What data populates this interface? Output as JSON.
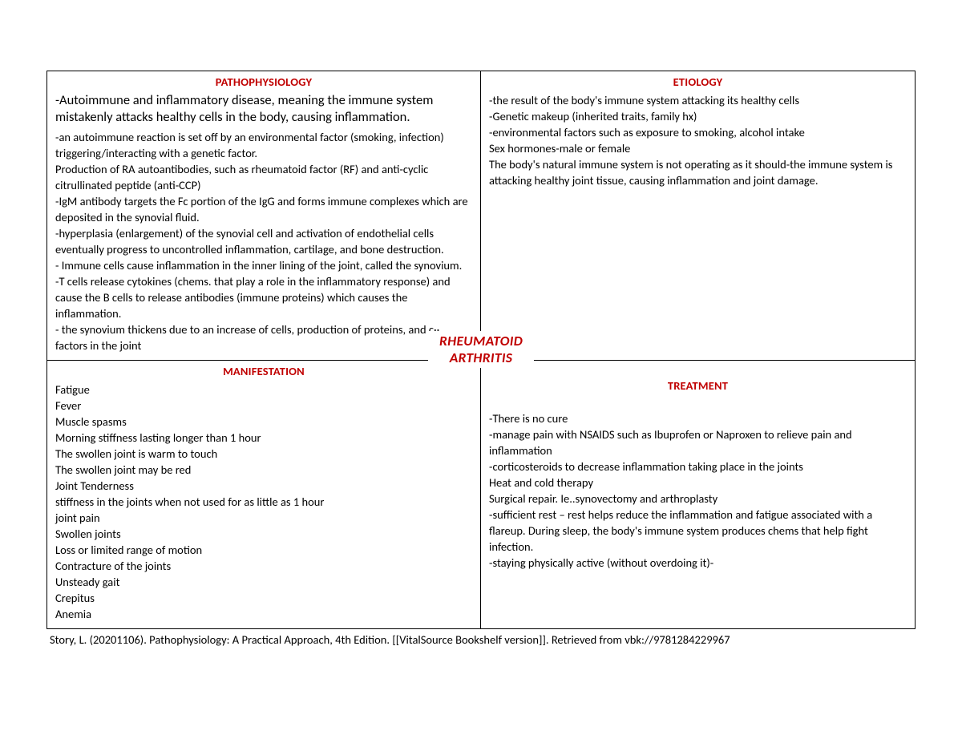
{
  "center": {
    "line1": "RHEUMATOID",
    "line2": "ARTHRITIS"
  },
  "colors": {
    "accent": "#c00000",
    "text": "#000000",
    "border": "#000000",
    "background": "#ffffff"
  },
  "quadrants": {
    "pathophysiology": {
      "heading": "PATHOPHYSIOLOGY",
      "lead": "-Autoimmune and inflammatory disease, meaning the immune system mistakenly attacks healthy cells in the body, causing inflammation.",
      "lines": [
        "-an autoimmune reaction is set off by an environmental factor (smoking, infection) triggering/interacting with a genetic factor.",
        "Production of RA autoantibodies, such as rheumatoid factor (RF) and anti-cyclic citrullinated peptide (anti-CCP)",
        "-IgM antibody targets the Fc portion of the IgG and forms immune complexes which are deposited in the synovial fluid.",
        "-hyperplasia (enlargement) of the synovial cell and activation of endothelial cells eventually progress to uncontrolled inflammation, cartilage, and bone destruction.",
        "- Immune cells cause inflammation in the inner lining of the joint, called the synovium.",
        "-T cells release cytokines (chems. that play a role in the inflammatory response) and cause the B cells to release antibodies (immune proteins) which causes the inflammation.",
        "- the synovium thickens due to an increase of cells, production of proteins, and c·· factors in the joint"
      ]
    },
    "etiology": {
      "heading": "ETIOLOGY",
      "lines": [
        "-the result of the body's immune system attacking its healthy cells",
        "-Genetic makeup (inherited traits, family hx)",
        "-environmental factors such as exposure to smoking, alcohol intake",
        "Sex hormones-male or female",
        "The body's natural immune system is not operating as it should-the immune system is attacking healthy joint tissue, causing inflammation and joint damage."
      ]
    },
    "manifestation": {
      "heading": "MANIFESTATION",
      "lines": [
        "Fatigue",
        "Fever",
        "Muscle spasms",
        "Morning stiffness lasting longer than 1 hour",
        "The swollen joint is warm to touch",
        "The swollen joint may be red",
        "Joint Tenderness",
        "stiffness in the joints when not used for as little as 1 hour",
        "joint pain",
        "Swollen joints",
        "Loss or limited range of motion",
        "Contracture of the joints",
        "Unsteady gait",
        "Crepitus",
        "Anemia"
      ]
    },
    "treatment": {
      "heading": "TREATMENT",
      "lines": [
        "-There is no cure",
        "-manage pain with NSAIDS such as Ibuprofen or Naproxen to relieve pain and inflammation",
        "-corticosteroids to decrease inflammation taking place in the joints",
        "Heat and cold therapy",
        "Surgical repair. Ie..synovectomy and arthroplasty",
        "-sufficient rest – rest helps reduce the inflammation and fatigue associated with a flareup. During sleep, the body's immune system produces chems that help fight infection.",
        "-staying physically active (without overdoing it)-"
      ]
    }
  },
  "citation": "Story, L.  (20201106). Pathophysiology: A Practical Approach,  4th Edition. [[VitalSource Bookshelf version]].  Retrieved from vbk://9781284229967"
}
